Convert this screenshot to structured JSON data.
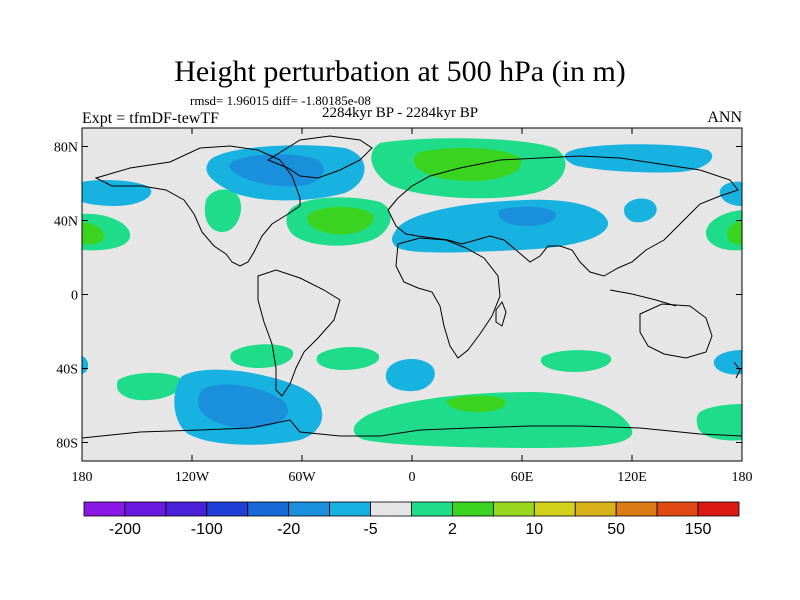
{
  "title": "Height perturbation at 500 hPa (in m)",
  "stats": "rmsd= 1.96015 diff= -1.80185e-08",
  "period": "2284kyr BP - 2284kyr BP",
  "left_label": "Expt = tfmDF-tewTF",
  "right_label": "ANN",
  "map": {
    "projection": "cylindrical equidistant",
    "lon_range": [
      -180,
      180
    ],
    "lat_range": [
      -90,
      90
    ],
    "ocean_fill": "#e6e6e6",
    "lat_ticks": [
      {
        "value": 80,
        "label": "80N"
      },
      {
        "value": 40,
        "label": "40N"
      },
      {
        "value": 0,
        "label": "0"
      },
      {
        "value": -40,
        "label": "40S"
      },
      {
        "value": -80,
        "label": "80S"
      }
    ],
    "lon_ticks": [
      {
        "value": -180,
        "label": "180"
      },
      {
        "value": -120,
        "label": "120W"
      },
      {
        "value": -60,
        "label": "60W"
      },
      {
        "value": 0,
        "label": "0"
      },
      {
        "value": 60,
        "label": "60E"
      },
      {
        "value": 120,
        "label": "120E"
      },
      {
        "value": 180,
        "label": "180"
      }
    ]
  },
  "colorbar": {
    "colors": [
      "#8a17e6",
      "#6a19e0",
      "#4a20d8",
      "#1f3fd6",
      "#1868d8",
      "#1a8fdc",
      "#18b2e0",
      "#e6e6e6",
      "#1fdc8a",
      "#3ad420",
      "#9ad820",
      "#d2d21c",
      "#d8b018",
      "#dc7a14",
      "#e04a12",
      "#dc1a14"
    ],
    "labels": [
      {
        "after_box": 1,
        "text": "-200"
      },
      {
        "after_box": 3,
        "text": "-100"
      },
      {
        "after_box": 5,
        "text": "-20"
      },
      {
        "after_box": 7,
        "text": "-5"
      },
      {
        "after_box": 9,
        "text": "2"
      },
      {
        "after_box": 11,
        "text": "10"
      },
      {
        "after_box": 13,
        "text": "50"
      },
      {
        "after_box": 15,
        "text": "150"
      }
    ]
  }
}
